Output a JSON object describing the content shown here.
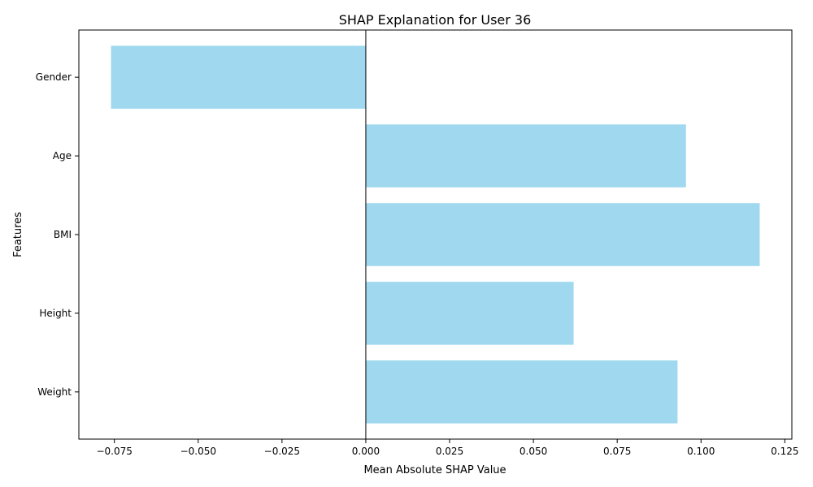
{
  "chart_data": {
    "type": "bar",
    "orientation": "horizontal",
    "title": "SHAP Explanation for User 36",
    "xlabel": "Mean Absolute SHAP Value",
    "ylabel": "Features",
    "categories": [
      "Weight",
      "Height",
      "BMI",
      "Age",
      "Gender"
    ],
    "values": [
      0.093,
      0.062,
      0.1175,
      0.0955,
      -0.076
    ],
    "xlim": [
      -0.0856,
      0.1271
    ],
    "xticks": [
      -0.075,
      -0.05,
      -0.025,
      0.0,
      0.025,
      0.05,
      0.075,
      0.1,
      0.125
    ],
    "xtick_labels": [
      "−0.075",
      "−0.050",
      "−0.025",
      "0.000",
      "0.025",
      "0.050",
      "0.075",
      "0.100",
      "0.125"
    ],
    "bar_color": "#87CEEB",
    "bar_alpha": 0.8,
    "zero_line": true,
    "grid": false,
    "legend": "none"
  }
}
